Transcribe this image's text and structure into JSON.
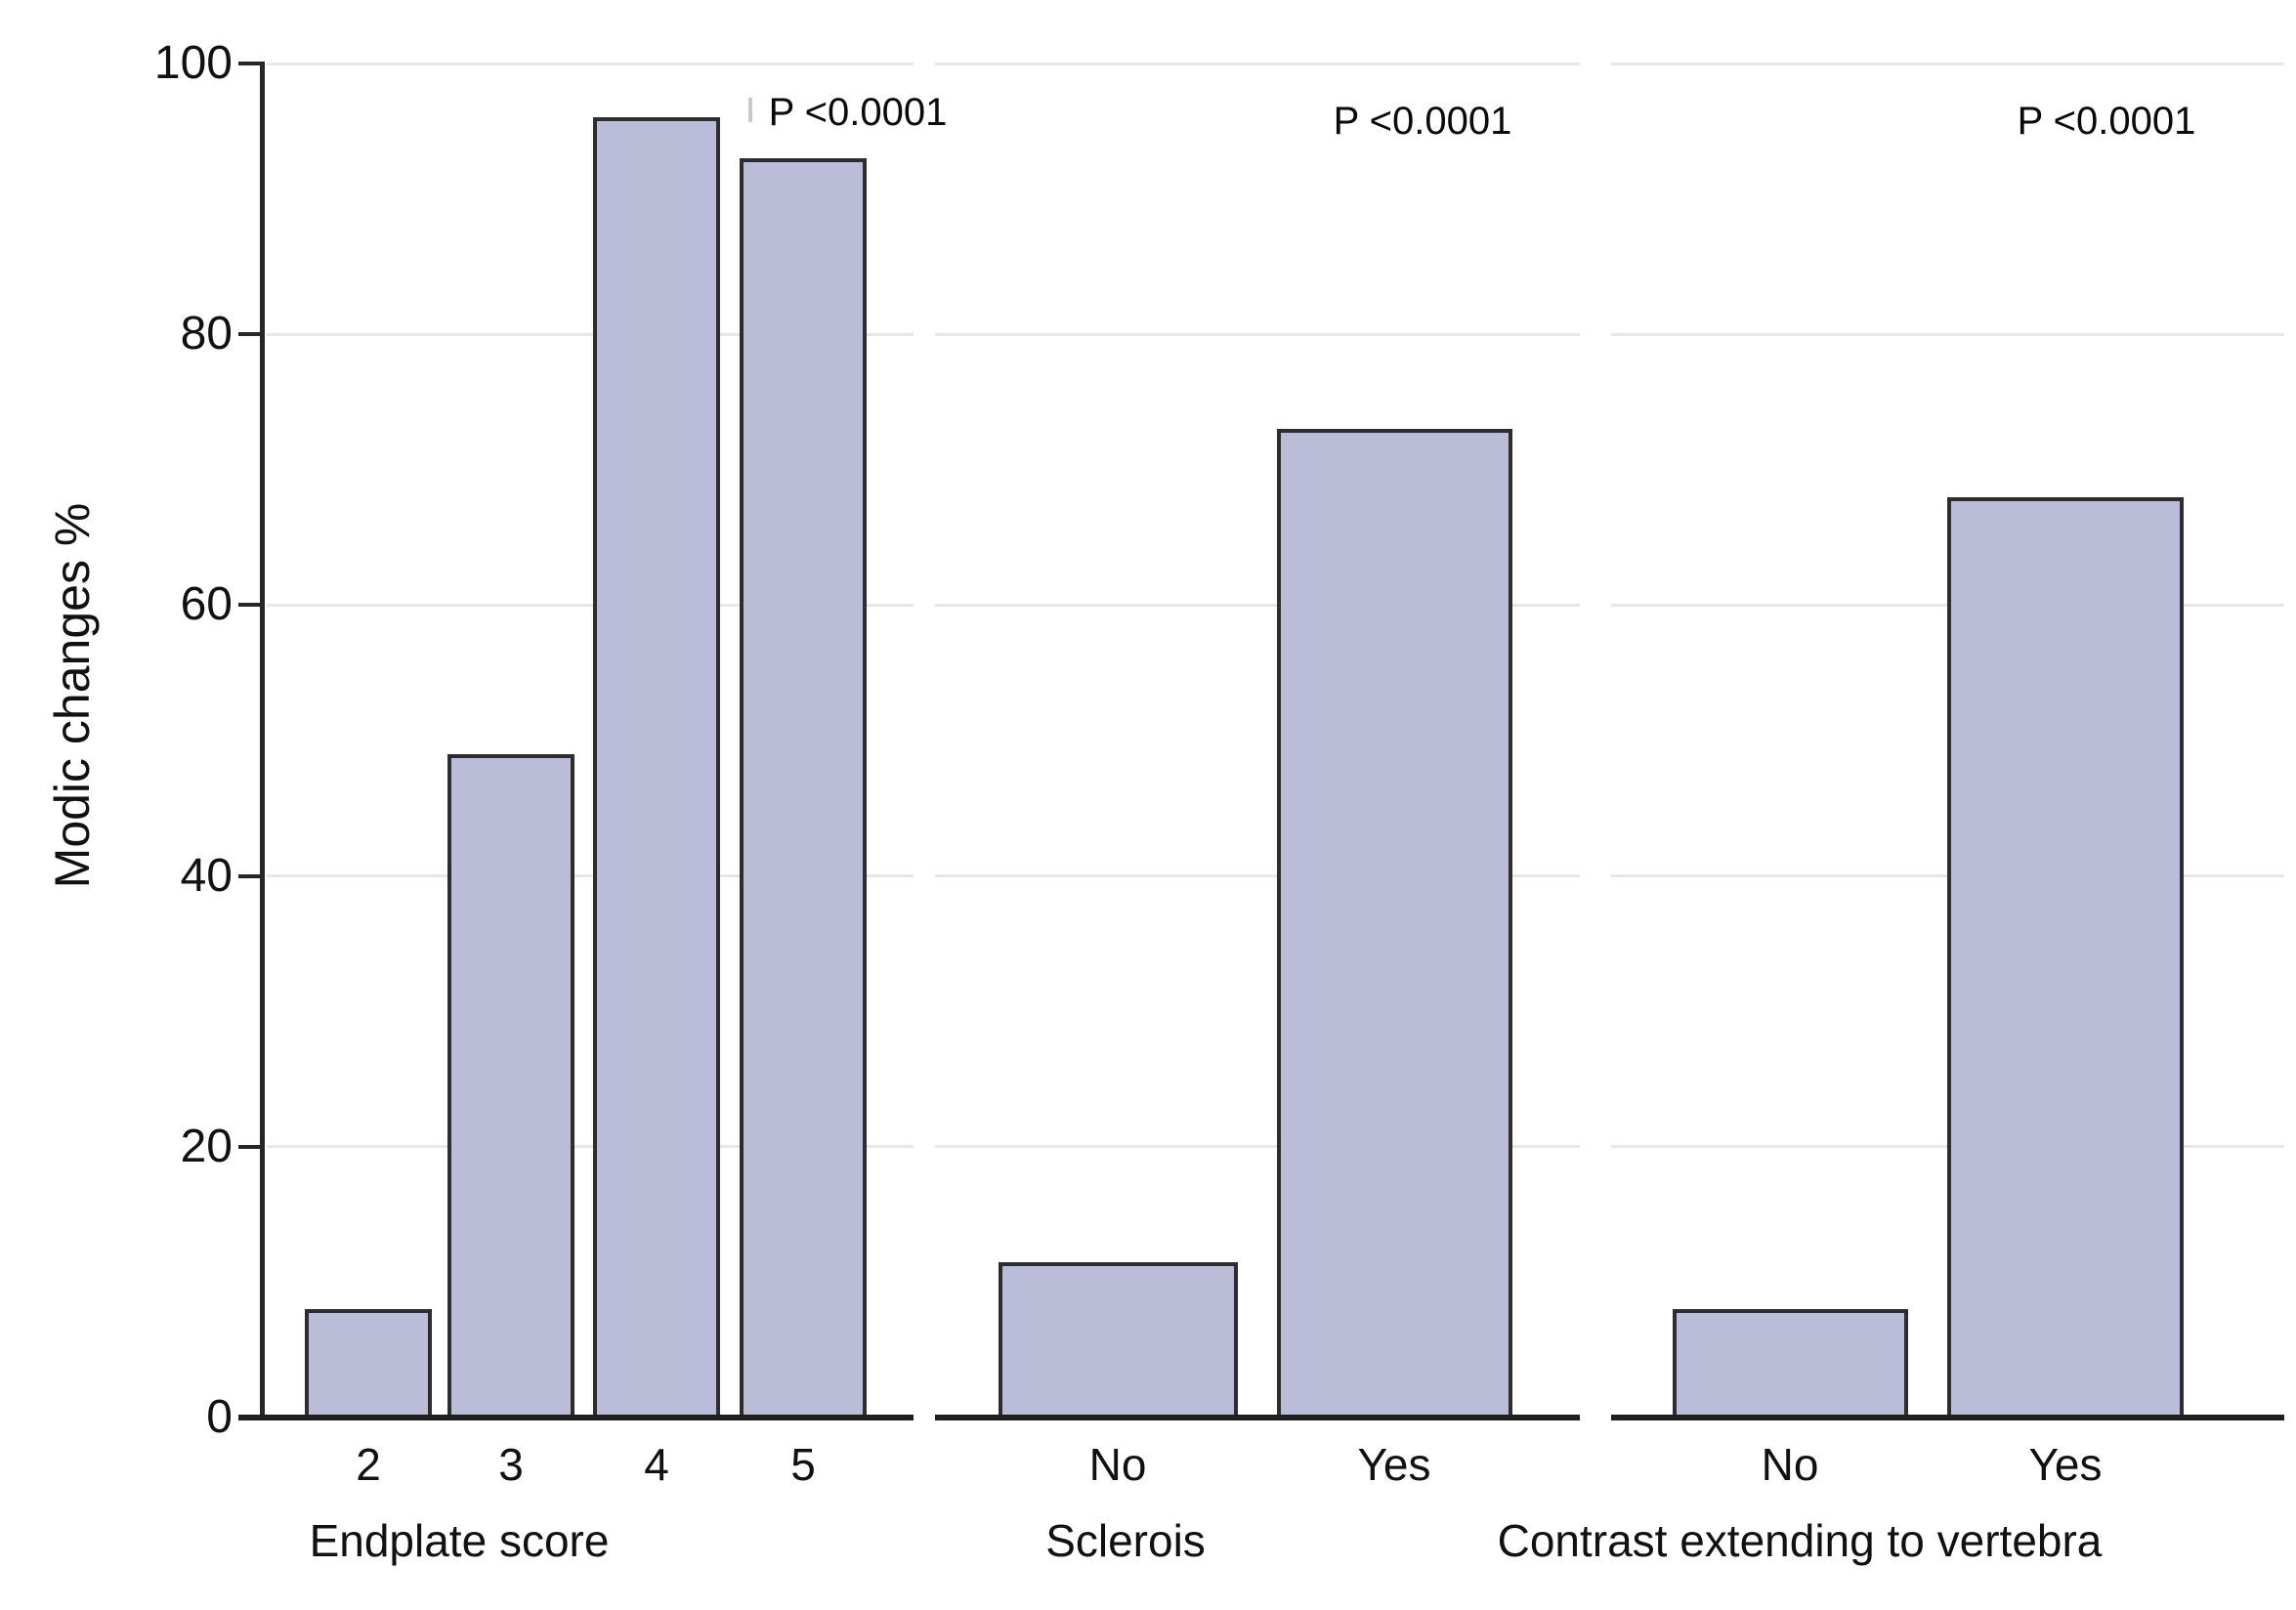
{
  "chart_data": {
    "type": "bar",
    "title": "",
    "ylabel": "Modic changes %",
    "ylim": [
      0,
      100
    ],
    "yticks": [
      0,
      20,
      40,
      60,
      80,
      100
    ],
    "grid": true,
    "legend": "none",
    "bar_color": "#bbbcd8",
    "bar_border_color": "#2d2d2d",
    "axis_color": "#262626",
    "gridline_color": "#e7e7e7",
    "panels": [
      {
        "xlabel": "Endplate score",
        "categories": [
          "2",
          "3",
          "4",
          "5"
        ],
        "values": [
          8,
          49,
          96,
          93
        ],
        "annotation": "P <0.0001"
      },
      {
        "xlabel": "Sclerois",
        "categories": [
          "No",
          "Yes"
        ],
        "values": [
          11.5,
          73
        ],
        "annotation": "P <0.0001"
      },
      {
        "xlabel": "Contrast extending to vertebra",
        "categories": [
          "No",
          "Yes"
        ],
        "values": [
          8,
          68
        ],
        "annotation": "P <0.0001"
      }
    ]
  }
}
